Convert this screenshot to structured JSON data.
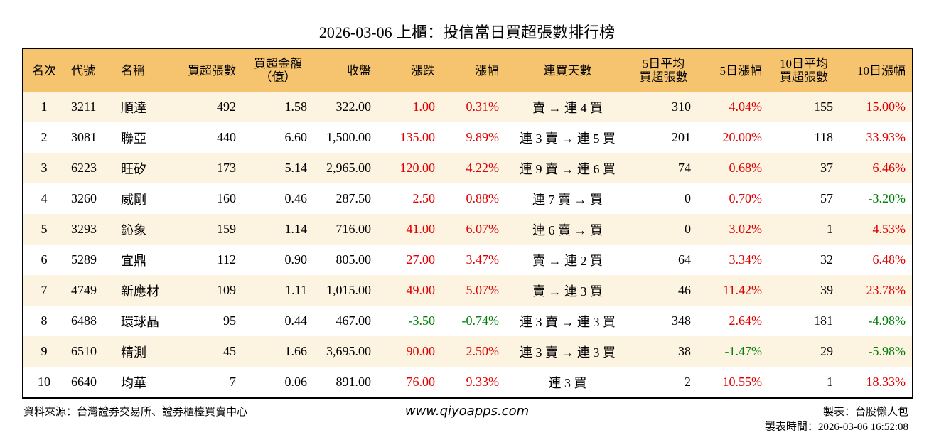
{
  "title": "2026-03-06 上櫃：投信當日買超張數排行榜",
  "table": {
    "header": [
      "名次",
      "代號",
      "名稱",
      "買超張數",
      "買超金額\n（億）",
      "收盤",
      "漲跌",
      "漲幅",
      "連買天數",
      "5日平均\n買超張數",
      "5日漲幅",
      "10日平均\n買超張數",
      "10日漲幅"
    ],
    "rows": [
      [
        "1",
        "3211",
        "順達",
        "492",
        "1.58",
        "322.00",
        "1.00",
        "0.31%",
        "賣 → 連 4 買",
        "310",
        "4.04%",
        "155",
        "15.00%"
      ],
      [
        "2",
        "3081",
        "聯亞",
        "440",
        "6.60",
        "1,500.00",
        "135.00",
        "9.89%",
        "連 3 賣 → 連 5 買",
        "201",
        "20.00%",
        "118",
        "33.93%"
      ],
      [
        "3",
        "6223",
        "旺矽",
        "173",
        "5.14",
        "2,965.00",
        "120.00",
        "4.22%",
        "連 9 賣 → 連 6 買",
        "74",
        "0.68%",
        "37",
        "6.46%"
      ],
      [
        "4",
        "3260",
        "威剛",
        "160",
        "0.46",
        "287.50",
        "2.50",
        "0.88%",
        "連 7 賣 → 買",
        "0",
        "0.70%",
        "57",
        "-3.20%"
      ],
      [
        "5",
        "3293",
        "鈊象",
        "159",
        "1.14",
        "716.00",
        "41.00",
        "6.07%",
        "連 6 賣 → 買",
        "0",
        "3.02%",
        "1",
        "4.53%"
      ],
      [
        "6",
        "5289",
        "宜鼎",
        "112",
        "0.90",
        "805.00",
        "27.00",
        "3.47%",
        "賣 → 連 2 買",
        "64",
        "3.34%",
        "32",
        "6.48%"
      ],
      [
        "7",
        "4749",
        "新應材",
        "109",
        "1.11",
        "1,015.00",
        "49.00",
        "5.07%",
        "賣 → 連 3 買",
        "46",
        "11.42%",
        "39",
        "23.78%"
      ],
      [
        "8",
        "6488",
        "環球晶",
        "95",
        "0.44",
        "467.00",
        "-3.50",
        "-0.74%",
        "連 3 賣 → 連 3 買",
        "348",
        "2.64%",
        "181",
        "-4.98%"
      ],
      [
        "9",
        "6510",
        "精測",
        "45",
        "1.66",
        "3,695.00",
        "90.00",
        "2.50%",
        "連 3 賣 → 連 3 買",
        "38",
        "-1.47%",
        "29",
        "-5.98%"
      ],
      [
        "10",
        "6640",
        "均華",
        "7",
        "0.06",
        "891.00",
        "76.00",
        "9.33%",
        "連 3 買",
        "2",
        "10.55%",
        "1",
        "18.33%"
      ]
    ]
  },
  "footer": {
    "source": "資料來源：台灣證券交易所、證券櫃檯買賣中心",
    "site": "www.qiyoapps.com",
    "author": "製表：台股懶人包",
    "time": "製表時間：2026-03-06 16:52:08"
  }
}
